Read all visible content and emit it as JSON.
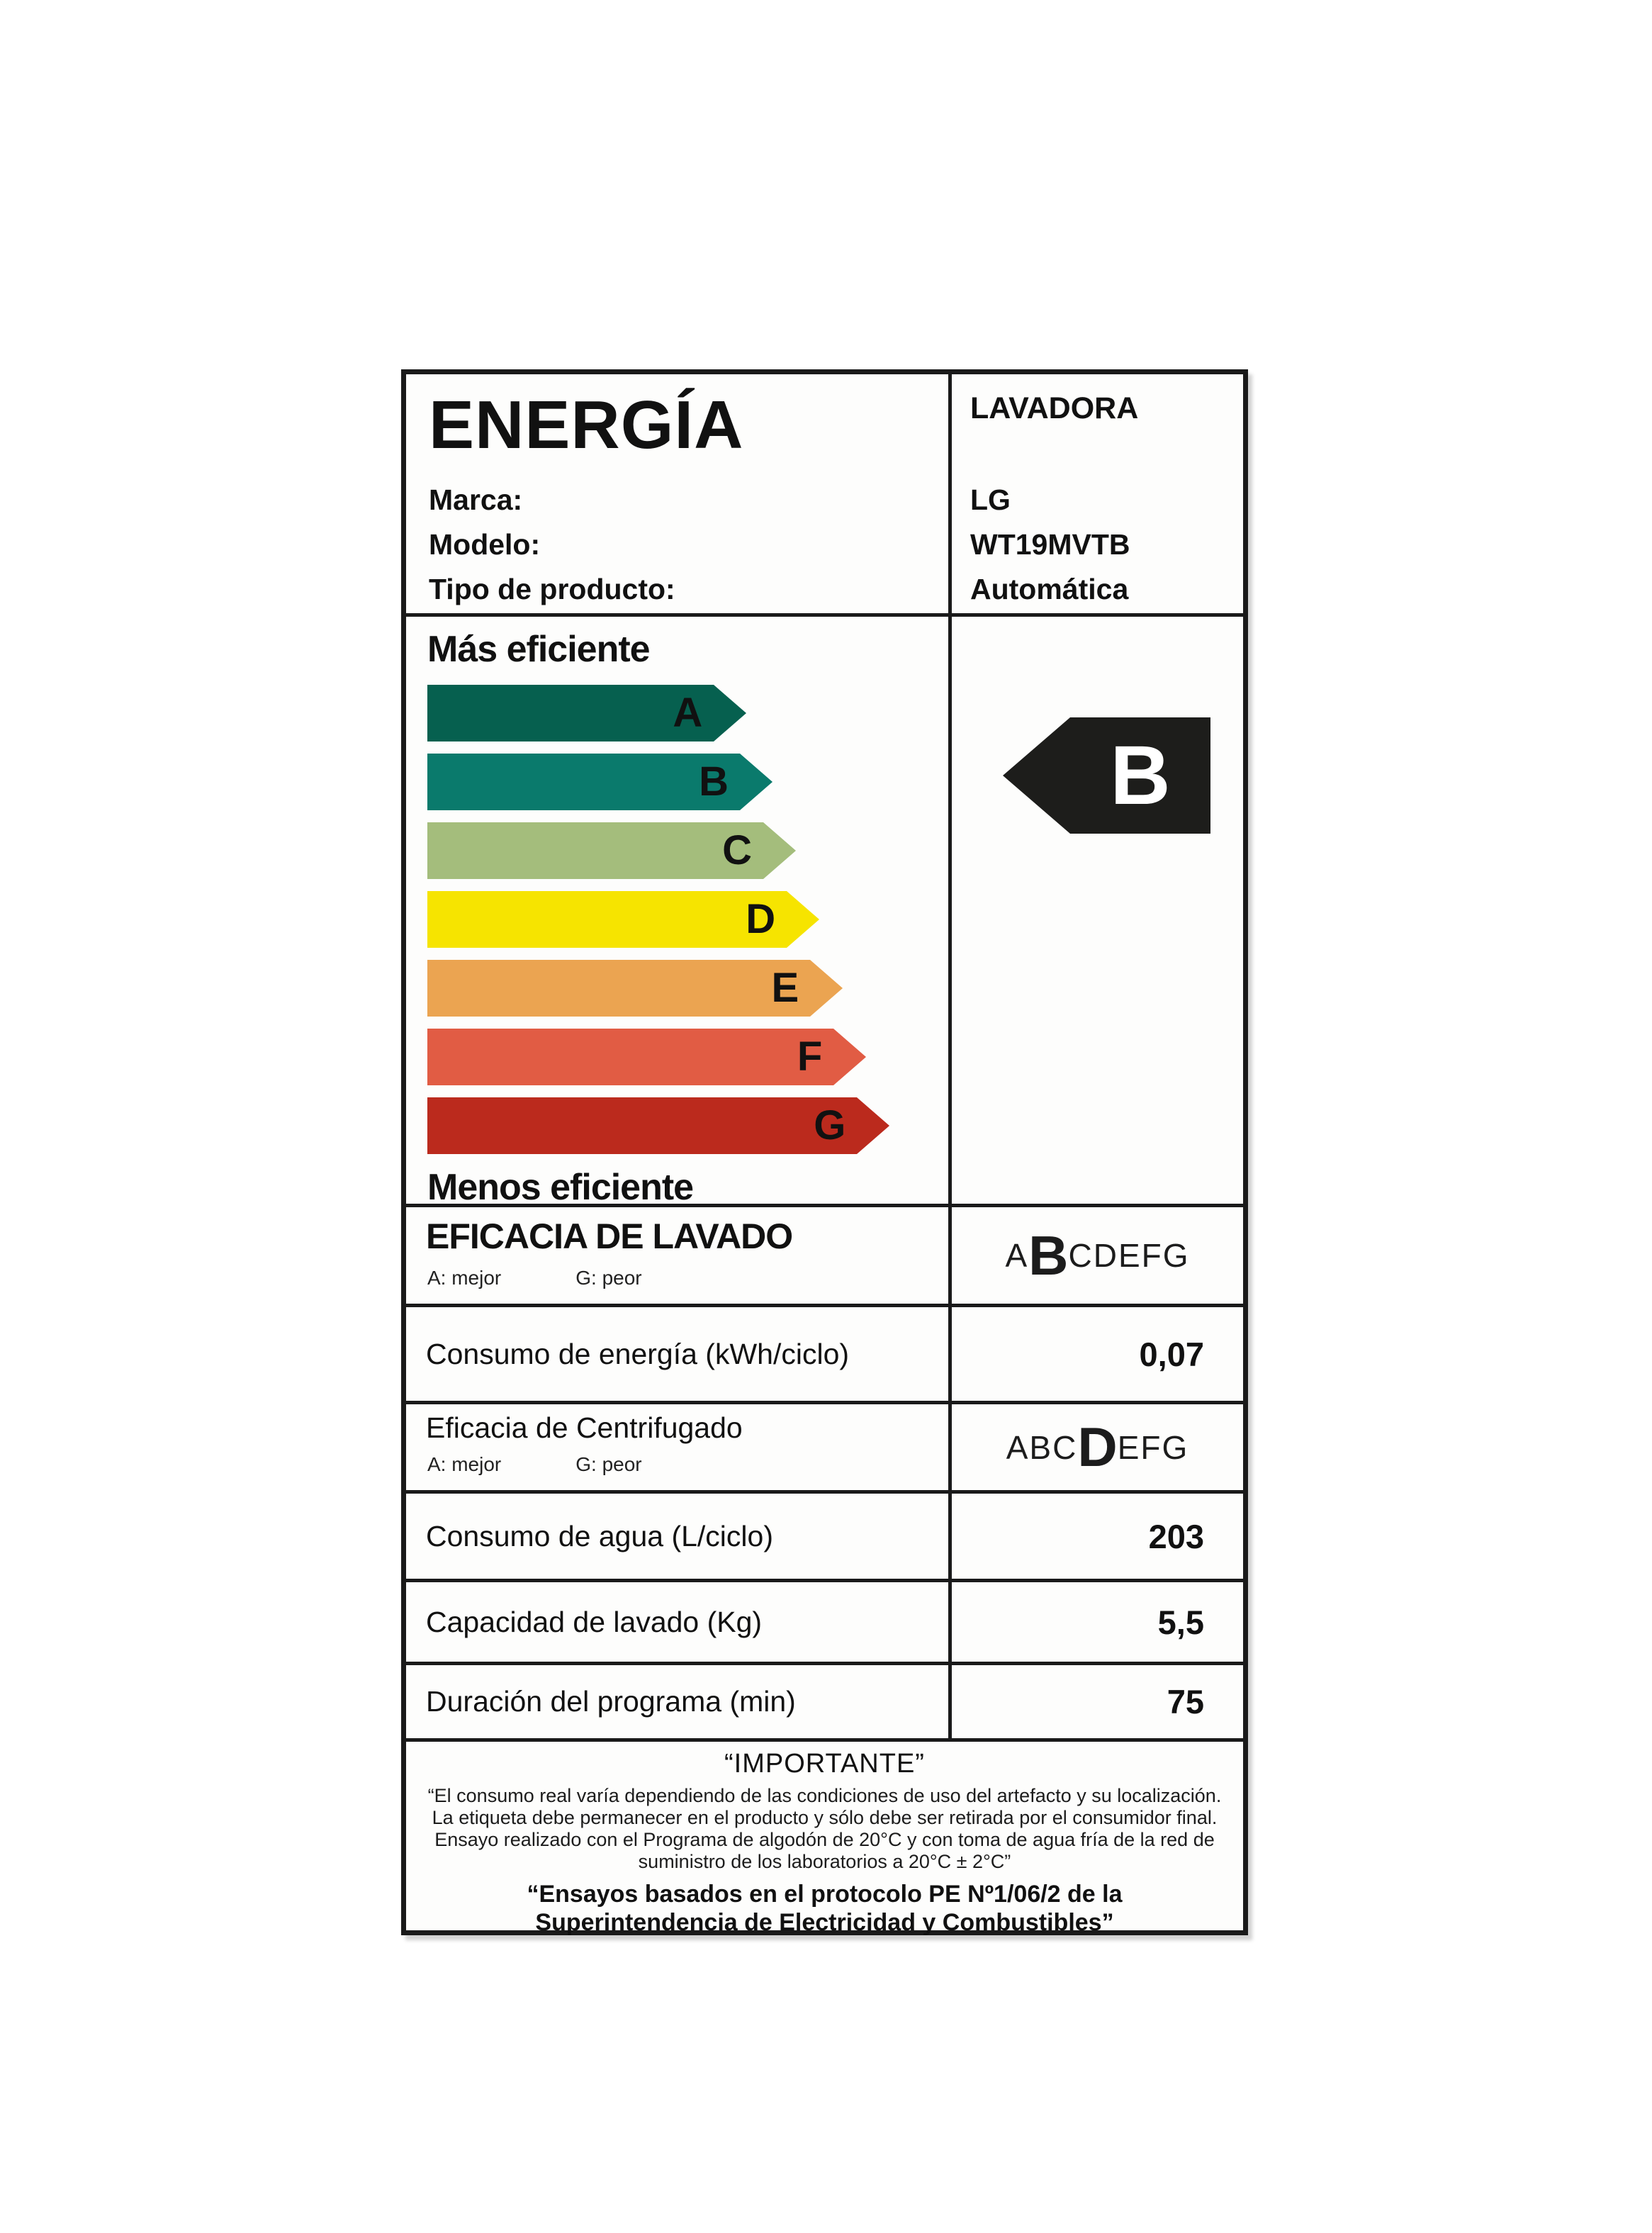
{
  "header": {
    "title": "ENERGÍA",
    "category": "LAVADORA",
    "fields": [
      {
        "label": "Marca:",
        "value": "LG"
      },
      {
        "label": "Modelo:",
        "value": "WT19MVTB"
      },
      {
        "label": "Tipo de producto:",
        "value": "Automática"
      }
    ]
  },
  "scale": {
    "more_label": "Más eficiente",
    "less_label": "Menos eficiente",
    "classes": [
      {
        "letter": "A",
        "color": "#06604F",
        "width_pct": 55.0
      },
      {
        "letter": "B",
        "color": "#0A7A6C",
        "width_pct": 60.0
      },
      {
        "letter": "C",
        "color": "#A4BD7C",
        "width_pct": 64.5
      },
      {
        "letter": "D",
        "color": "#F6E400",
        "width_pct": 69.0
      },
      {
        "letter": "E",
        "color": "#EBA451",
        "width_pct": 73.5
      },
      {
        "letter": "F",
        "color": "#E15C44",
        "width_pct": 78.0
      },
      {
        "letter": "G",
        "color": "#BB2A1D",
        "width_pct": 82.5
      }
    ],
    "rating_letter": "B",
    "rating_color": "#1d1d1b"
  },
  "rows": [
    {
      "type": "letters",
      "title": "EFICACIA DE LAVADO",
      "legend_a": "A: mejor",
      "legend_g": "G: peor",
      "letters": "ABCDEFG",
      "selected": "B"
    },
    {
      "type": "value",
      "title": "Consumo de energía (kWh/ciclo)",
      "value": "0,07"
    },
    {
      "type": "letters",
      "title": "Eficacia de Centrifugado",
      "legend_a": "A: mejor",
      "legend_g": "G: peor",
      "letters": "ABCDEFG",
      "selected": "D"
    },
    {
      "type": "value",
      "title": "Consumo de agua (L/ciclo)",
      "value": "203"
    },
    {
      "type": "value",
      "title": "Capacidad de lavado (Kg)",
      "value": "5,5"
    },
    {
      "type": "value",
      "title": "Duración del programa (min)",
      "value": "75"
    }
  ],
  "footer": {
    "title": "“IMPORTANTE”",
    "lines": [
      "“El consumo real varía dependiendo de las condiciones de uso del artefacto y su localización.",
      "La etiqueta debe permanecer en el producto y sólo debe ser retirada por el consumidor final.",
      "Ensayo realizado con el Programa de algodón de 20°C y con toma de agua fría de la red de",
      "suministro de los laboratorios a 20°C ± 2°C”"
    ],
    "protocol": "“Ensayos basados en el protocolo PE Nº1/06/2 de la Superintendencia de Electricidad y Combustibles”"
  }
}
